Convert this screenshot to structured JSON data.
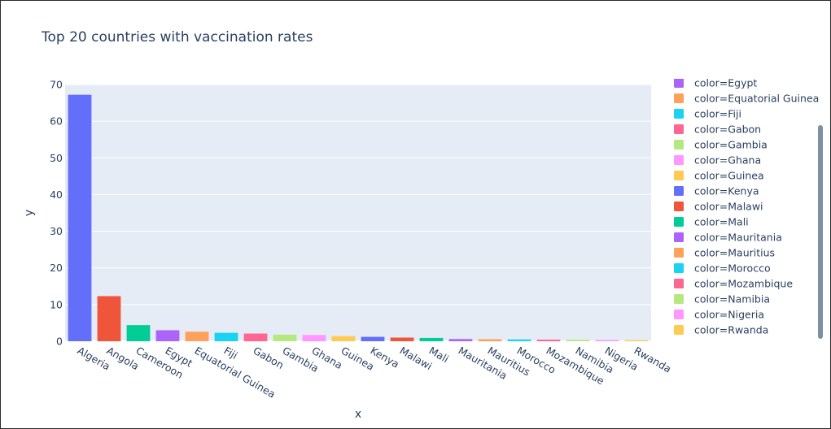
{
  "chart_data": {
    "type": "bar",
    "title": "Top 20 countries with vaccination rates",
    "xlabel": "x",
    "ylabel": "y",
    "ylim": [
      0,
      70
    ],
    "yticks": [
      0,
      10,
      20,
      30,
      40,
      50,
      60,
      70
    ],
    "categories": [
      "Algeria",
      "Angola",
      "Cameroon",
      "Egypt",
      "Equatorial Guinea",
      "Fiji",
      "Gabon",
      "Gambia",
      "Ghana",
      "Guinea",
      "Kenya",
      "Malawi",
      "Mali",
      "Mauritania",
      "Mauritius",
      "Morocco",
      "Mozambique",
      "Namibia",
      "Nigeria",
      "Rwanda"
    ],
    "values": [
      67.2,
      12.3,
      4.4,
      3.0,
      2.6,
      2.3,
      2.1,
      1.8,
      1.7,
      1.4,
      1.2,
      1.0,
      0.9,
      0.6,
      0.55,
      0.5,
      0.45,
      0.4,
      0.35,
      0.3
    ],
    "colors": [
      "#636efa",
      "#EF553B",
      "#00cc96",
      "#ab63fa",
      "#FFA15A",
      "#19d3f3",
      "#FF6692",
      "#B6E880",
      "#FF97FF",
      "#FECB52",
      "#636efa",
      "#EF553B",
      "#00cc96",
      "#ab63fa",
      "#FFA15A",
      "#19d3f3",
      "#FF6692",
      "#B6E880",
      "#FF97FF",
      "#FECB52"
    ],
    "legend": {
      "placement": "right",
      "entries": [
        {
          "label": "color=Egypt",
          "color": "#ab63fa"
        },
        {
          "label": "color=Equatorial Guinea",
          "color": "#FFA15A"
        },
        {
          "label": "color=Fiji",
          "color": "#19d3f3"
        },
        {
          "label": "color=Gabon",
          "color": "#FF6692"
        },
        {
          "label": "color=Gambia",
          "color": "#B6E880"
        },
        {
          "label": "color=Ghana",
          "color": "#FF97FF"
        },
        {
          "label": "color=Guinea",
          "color": "#FECB52"
        },
        {
          "label": "color=Kenya",
          "color": "#636efa"
        },
        {
          "label": "color=Malawi",
          "color": "#EF553B"
        },
        {
          "label": "color=Mali",
          "color": "#00cc96"
        },
        {
          "label": "color=Mauritania",
          "color": "#ab63fa"
        },
        {
          "label": "color=Mauritius",
          "color": "#FFA15A"
        },
        {
          "label": "color=Morocco",
          "color": "#19d3f3"
        },
        {
          "label": "color=Mozambique",
          "color": "#FF6692"
        },
        {
          "label": "color=Namibia",
          "color": "#B6E880"
        },
        {
          "label": "color=Nigeria",
          "color": "#FF97FF"
        },
        {
          "label": "color=Rwanda",
          "color": "#FECB52"
        }
      ]
    },
    "plot_background": "#e5ecf6",
    "grid": true
  }
}
